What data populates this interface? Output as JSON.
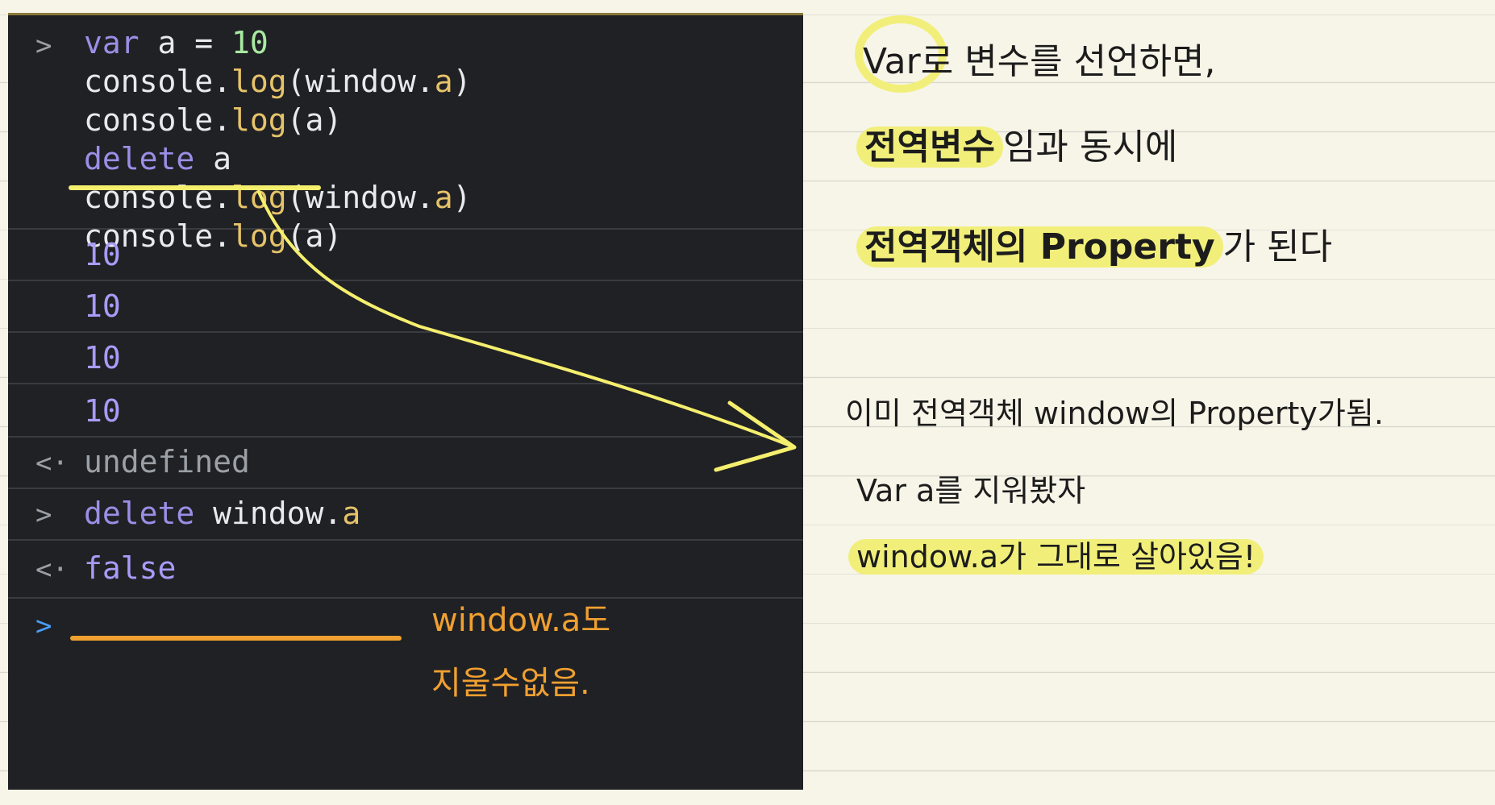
{
  "console": {
    "input_lines": [
      {
        "prompt": ">",
        "parts": [
          {
            "t": "var",
            "c": "kw"
          },
          {
            "t": " a = ",
            "c": ""
          },
          {
            "t": "10",
            "c": "num"
          }
        ]
      },
      {
        "prompt": "",
        "parts": [
          {
            "t": "console.",
            "c": ""
          },
          {
            "t": "log",
            "c": "fn"
          },
          {
            "t": "(window.",
            "c": ""
          },
          {
            "t": "a",
            "c": "fn"
          },
          {
            "t": ")",
            "c": ""
          }
        ]
      },
      {
        "prompt": "",
        "parts": [
          {
            "t": "console.",
            "c": ""
          },
          {
            "t": "log",
            "c": "fn"
          },
          {
            "t": "(a)",
            "c": ""
          }
        ]
      },
      {
        "prompt": "",
        "parts": [
          {
            "t": "delete",
            "c": "kw"
          },
          {
            "t": " a",
            "c": ""
          }
        ]
      },
      {
        "prompt": "",
        "parts": [
          {
            "t": "console.",
            "c": ""
          },
          {
            "t": "log",
            "c": "fn"
          },
          {
            "t": "(window.",
            "c": ""
          },
          {
            "t": "a",
            "c": "fn"
          },
          {
            "t": ")",
            "c": ""
          }
        ]
      },
      {
        "prompt": "",
        "parts": [
          {
            "t": "console.",
            "c": ""
          },
          {
            "t": "log",
            "c": "fn"
          },
          {
            "t": "(a)",
            "c": ""
          }
        ]
      }
    ],
    "outputs": [
      "10",
      "10",
      "10",
      "10"
    ],
    "return_prompt": "<·",
    "return_value": "undefined",
    "second_input": {
      "prompt": ">",
      "keyword": "delete",
      "rest": " window.",
      "prop": "a"
    },
    "second_return": "false",
    "empty_prompt": ">"
  },
  "notes": {
    "line1": "Var로 변수를 선언하면,",
    "line2_bold": "전역변수",
    "line2_rest": "임과 동시에",
    "line3_bold": "전역객체의 Property",
    "line3_rest": "가 된다",
    "side1": "이미 전역객체 window의 Property가됨.",
    "side2": "Var a를 지워봤자",
    "side3": "window.a가 그대로 살아있음!",
    "orange1": "window.a도",
    "orange2": "지울수없음."
  },
  "colors": {
    "highlight": "#f1ef7a",
    "orange": "#f0a030",
    "console_bg": "#202125"
  }
}
